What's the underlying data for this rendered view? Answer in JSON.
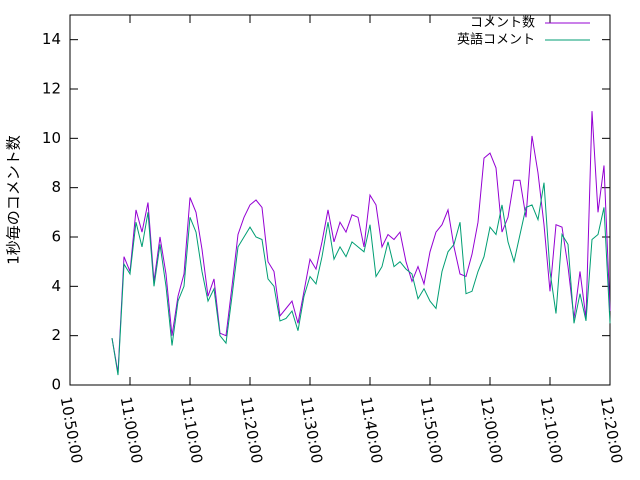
{
  "chart_data": {
    "type": "line",
    "y_label": "1秒毎のコメント数",
    "x": [
      "10:57:00",
      "10:58:00",
      "10:59:00",
      "11:00:00",
      "11:01:00",
      "11:02:00",
      "11:03:00",
      "11:04:00",
      "11:05:00",
      "11:06:00",
      "11:07:00",
      "11:08:00",
      "11:09:00",
      "11:10:00",
      "11:11:00",
      "11:12:00",
      "11:13:00",
      "11:14:00",
      "11:15:00",
      "11:16:00",
      "11:17:00",
      "11:18:00",
      "11:19:00",
      "11:20:00",
      "11:21:00",
      "11:22:00",
      "11:23:00",
      "11:24:00",
      "11:25:00",
      "11:26:00",
      "11:27:00",
      "11:28:00",
      "11:29:00",
      "11:30:00",
      "11:31:00",
      "11:32:00",
      "11:33:00",
      "11:34:00",
      "11:35:00",
      "11:36:00",
      "11:37:00",
      "11:38:00",
      "11:39:00",
      "11:40:00",
      "11:41:00",
      "11:42:00",
      "11:43:00",
      "11:44:00",
      "11:45:00",
      "11:46:00",
      "11:47:00",
      "11:48:00",
      "11:49:00",
      "11:50:00",
      "11:51:00",
      "11:52:00",
      "11:53:00",
      "11:54:00",
      "11:55:00",
      "11:56:00",
      "11:57:00",
      "11:58:00",
      "11:59:00",
      "12:00:00",
      "12:01:00",
      "12:02:00",
      "12:03:00",
      "12:04:00",
      "12:05:00",
      "12:06:00",
      "12:07:00",
      "12:08:00",
      "12:09:00",
      "12:10:00",
      "12:11:00",
      "12:12:00",
      "12:13:00",
      "12:14:00",
      "12:15:00",
      "12:16:00",
      "12:17:00",
      "12:18:00",
      "12:19:00",
      "12:20:00"
    ],
    "series": [
      {
        "name": "コメント数",
        "color": "#9400d3",
        "values": [
          1.9,
          0.5,
          5.2,
          4.6,
          7.1,
          6.2,
          7.4,
          4.2,
          6.0,
          4.5,
          2.0,
          3.6,
          4.5,
          7.6,
          7.0,
          5.5,
          3.6,
          4.3,
          2.1,
          2.0,
          4.0,
          6.1,
          6.8,
          7.3,
          7.5,
          7.2,
          5.0,
          4.6,
          2.8,
          3.1,
          3.4,
          2.5,
          3.8,
          5.1,
          4.7,
          5.8,
          7.1,
          5.8,
          6.6,
          6.2,
          6.9,
          6.8,
          5.6,
          7.7,
          7.3,
          5.6,
          6.1,
          5.9,
          6.2,
          5.0,
          4.2,
          4.8,
          4.1,
          5.4,
          6.2,
          6.5,
          7.1,
          5.6,
          4.5,
          4.4,
          5.3,
          6.6,
          9.2,
          9.4,
          8.8,
          6.2,
          6.8,
          8.3,
          8.3,
          6.8,
          10.1,
          8.6,
          6.5,
          3.8,
          6.5,
          6.4,
          4.8,
          2.7,
          4.6,
          2.7,
          11.1,
          7.0,
          8.9,
          3.0
        ]
      },
      {
        "name": "英語コメント",
        "color": "#009e73",
        "values": [
          1.9,
          0.4,
          4.9,
          4.5,
          6.6,
          5.6,
          7.0,
          4.0,
          5.7,
          4.0,
          1.6,
          3.4,
          4.0,
          6.8,
          6.2,
          4.6,
          3.4,
          3.9,
          2.0,
          1.7,
          3.6,
          5.6,
          6.0,
          6.4,
          6.0,
          5.9,
          4.3,
          4.0,
          2.6,
          2.7,
          3.0,
          2.2,
          3.6,
          4.4,
          4.1,
          5.2,
          6.6,
          5.1,
          5.6,
          5.2,
          5.8,
          5.6,
          5.4,
          6.5,
          4.4,
          4.8,
          5.8,
          4.8,
          5.0,
          4.7,
          4.5,
          3.5,
          3.9,
          3.4,
          3.1,
          4.6,
          5.4,
          5.7,
          6.6,
          3.7,
          3.8,
          4.6,
          5.2,
          6.4,
          6.1,
          7.3,
          5.8,
          5.0,
          6.1,
          7.2,
          7.3,
          6.7,
          8.2,
          4.6,
          2.9,
          6.1,
          5.7,
          2.5,
          3.7,
          2.6,
          5.9,
          6.1,
          7.2,
          2.5
        ]
      }
    ],
    "xlim": [
      "10:50:00",
      "12:20:00"
    ],
    "xticks": [
      "10:50:00",
      "11:00:00",
      "11:10:00",
      "11:20:00",
      "11:30:00",
      "11:40:00",
      "11:50:00",
      "12:00:00",
      "12:10:00",
      "12:20:00"
    ],
    "ylim": [
      0,
      15
    ],
    "yticks": [
      0,
      2,
      4,
      6,
      8,
      10,
      12,
      14
    ],
    "legend": "top-right"
  }
}
